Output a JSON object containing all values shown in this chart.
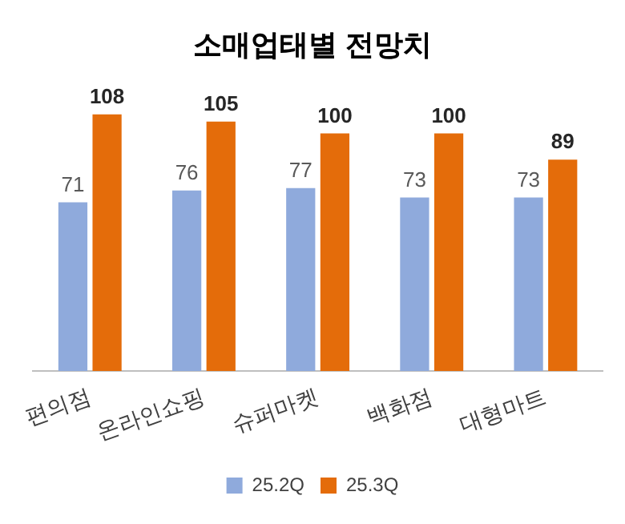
{
  "chart_data": {
    "type": "bar",
    "title": "소매업태별 전망치",
    "categories": [
      "편의점",
      "온라인쇼핑",
      "슈퍼마켓",
      "백화점",
      "대형마트"
    ],
    "series": [
      {
        "name": "25.2Q",
        "color": "#8faadc",
        "values": [
          71,
          76,
          77,
          73,
          73
        ]
      },
      {
        "name": "25.3Q",
        "color": "#e46c0a",
        "values": [
          108,
          105,
          100,
          100,
          89
        ]
      }
    ],
    "data_labels": true,
    "grid": false,
    "legend": "bottom",
    "tick_labels": "x"
  }
}
